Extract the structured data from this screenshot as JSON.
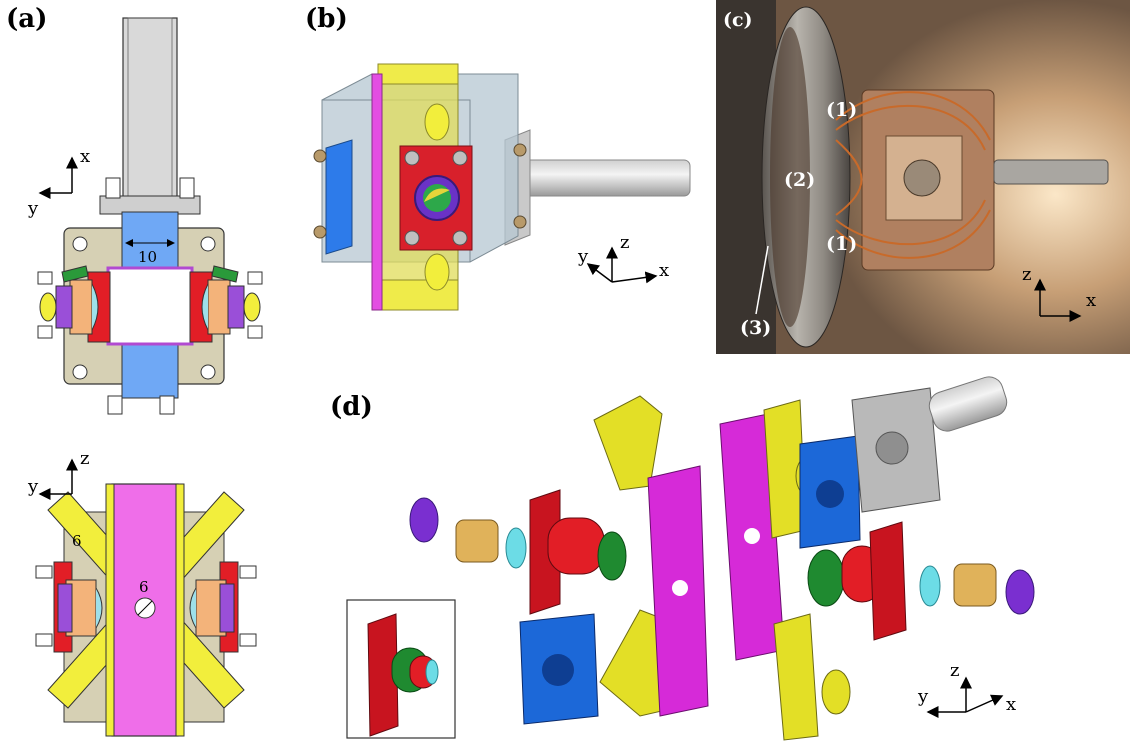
{
  "panels": {
    "a": "(a)",
    "b": "(b)",
    "c": "(c)",
    "d": "(d)"
  },
  "panel_a_top": {
    "axis_vertical": "x",
    "axis_horizontal": "y",
    "dimension": "10"
  },
  "panel_a_bottom": {
    "axis_vertical": "z",
    "axis_horizontal": "y",
    "dimension_diagonal": "6",
    "dimension_hole": "6"
  },
  "panel_b": {
    "axis_y": "y",
    "axis_z": "z",
    "axis_x": "x"
  },
  "panel_c": {
    "label_1_top": "(1)",
    "label_2": "(2)",
    "label_1_bottom": "(1)",
    "label_3": "(3)",
    "axis_z": "z",
    "axis_x": "x"
  },
  "panel_d": {
    "axis_z": "z",
    "axis_y": "y",
    "axis_x": "x"
  },
  "colors": {
    "rod": "#d9d9d9",
    "plate": "#d6d0b4",
    "blue": "#6fa8f5",
    "red": "#e21e26",
    "green": "#2a9a3a",
    "purple": "#9a4fd8",
    "orange": "#f3b37a",
    "cyan": "#9ee0ea",
    "yellow": "#f2ee3c",
    "magenta": "#ef6ee9",
    "photo_bg": "#7a6a58"
  }
}
